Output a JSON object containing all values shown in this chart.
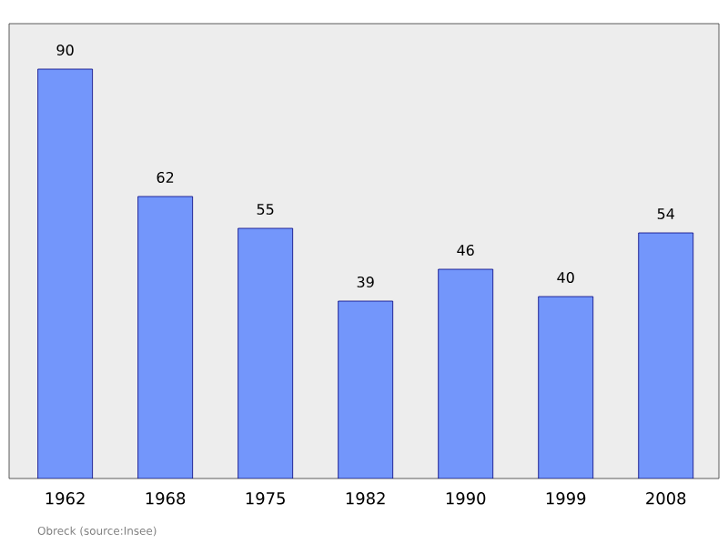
{
  "chart_data": {
    "type": "bar",
    "categories": [
      "1962",
      "1968",
      "1975",
      "1982",
      "1990",
      "1999",
      "2008"
    ],
    "values": [
      90,
      62,
      55,
      39,
      46,
      40,
      54
    ],
    "color": "#7396fb",
    "ylim": [
      0,
      100
    ],
    "data_labels": true,
    "annotations": [
      "Obreck   (source:Insee)"
    ]
  }
}
